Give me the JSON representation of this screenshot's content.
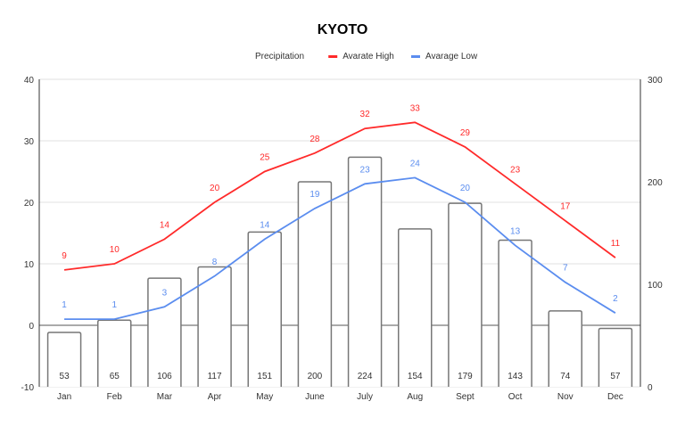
{
  "chart_data": {
    "type": "bar+line",
    "title": "KYOTO",
    "categories": [
      "Jan",
      "Feb",
      "Mar",
      "Apr",
      "May",
      "June",
      "July",
      "Aug",
      "Sept",
      "Oct",
      "Nov",
      "Dec"
    ],
    "series": [
      {
        "name": "Precipitation",
        "type": "bar",
        "axis": "right",
        "color": "#ffffff",
        "stroke": "#777777",
        "values": [
          53,
          65,
          106,
          117,
          151,
          200,
          224,
          154,
          179,
          143,
          74,
          57
        ]
      },
      {
        "name": "Avarate High",
        "type": "line",
        "axis": "left",
        "color": "#ff2a2a",
        "values": [
          9,
          10,
          14,
          20,
          25,
          28,
          32,
          33,
          29,
          23,
          17,
          11
        ]
      },
      {
        "name": "Avarage Low",
        "type": "line",
        "axis": "left",
        "color": "#5b8def",
        "values": [
          1,
          1,
          3,
          8,
          14,
          19,
          23,
          24,
          20,
          13,
          7,
          2
        ]
      }
    ],
    "left_axis": {
      "ylim": [
        -10,
        40
      ],
      "ticks": [
        "-10",
        "0",
        "10",
        "20",
        "30",
        "40"
      ]
    },
    "right_axis": {
      "ylim": [
        0,
        300
      ],
      "ticks": [
        "0",
        "100",
        "200",
        "300"
      ]
    },
    "legend": "top",
    "grid": true
  }
}
